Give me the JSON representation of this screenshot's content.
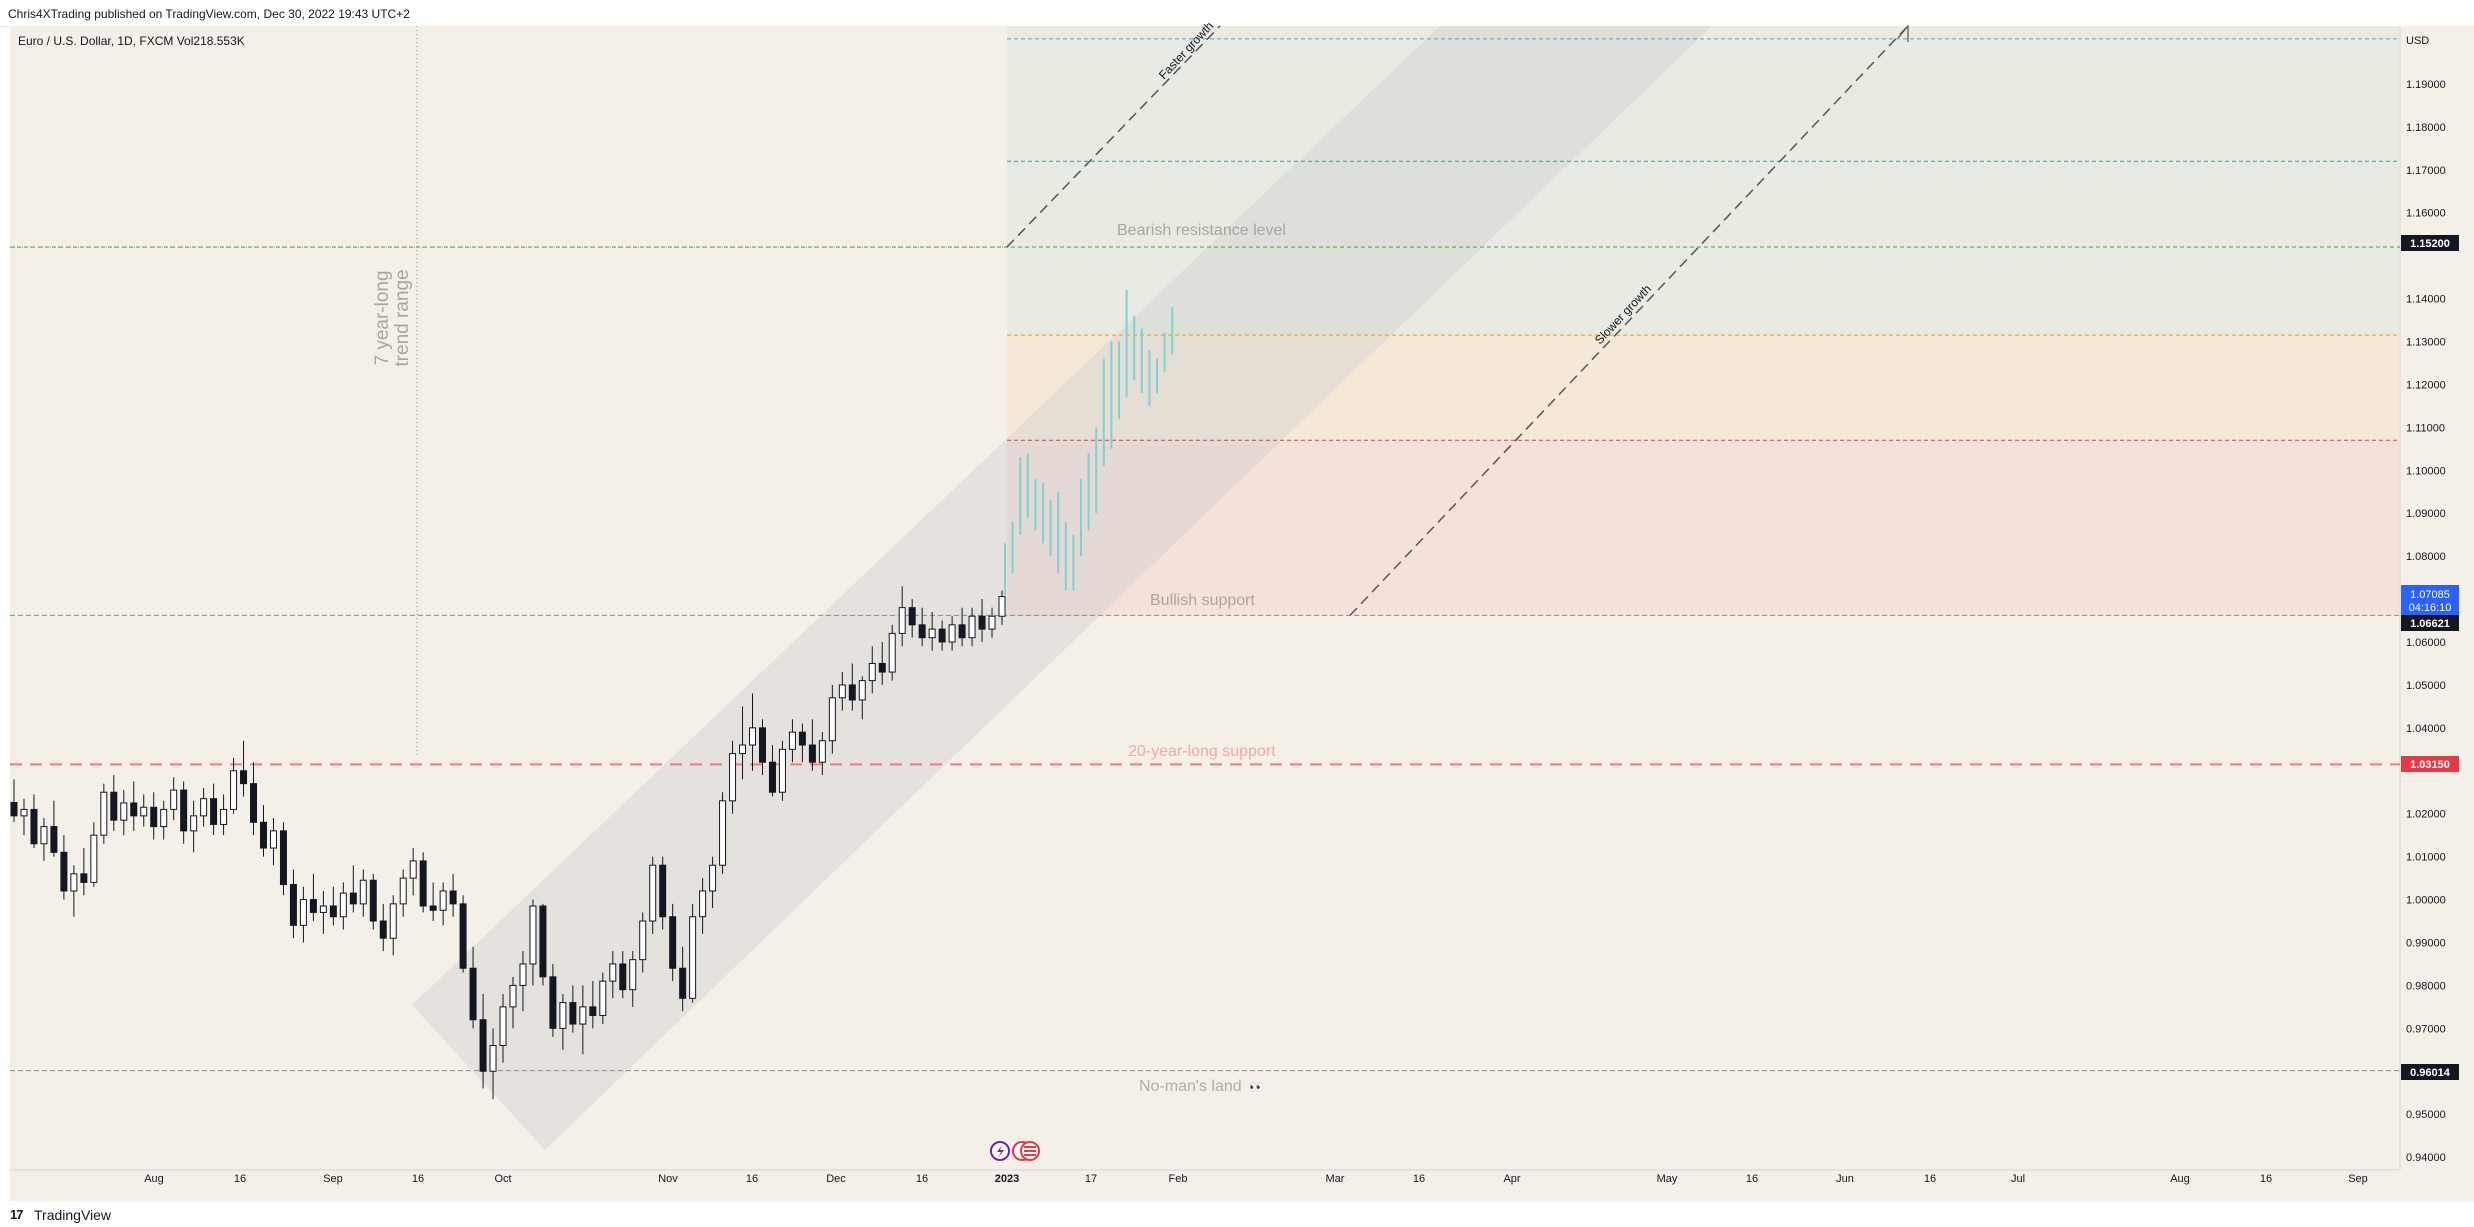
{
  "header": {
    "text": "Chris4XTrading published on TradingView.com, Dec 30, 2022 19:43 UTC+2"
  },
  "footer": {
    "logo": "17",
    "brand": "TradingView"
  },
  "chart_data": {
    "type": "candlestick",
    "symbol_title": "Euro / U.S. Dollar, 1D, FXCM  Vol218.553K",
    "currency": "USD",
    "ylim": [
      0.937,
      1.2035
    ],
    "y_ticks": [
      "1.19000",
      "1.18000",
      "1.17000",
      "1.16000",
      "1.14000",
      "1.13000",
      "1.12000",
      "1.11000",
      "1.10000",
      "1.09000",
      "1.08000",
      "1.06000",
      "1.05000",
      "1.04000",
      "1.02000",
      "1.01000",
      "1.00000",
      "0.99000",
      "0.98000",
      "0.97000",
      "0.95000",
      "0.94000"
    ],
    "x_ticks": [
      "Aug",
      "16",
      "Sep",
      "16",
      "Oct",
      "Nov",
      "16",
      "Dec",
      "16",
      "2023",
      "17",
      "Feb",
      "Mar",
      "16",
      "Apr",
      "May",
      "16",
      "Jun",
      "16",
      "Jul",
      "Aug",
      "16",
      "Sep"
    ],
    "price_badges": {
      "resistance": "1.15200",
      "current_price": "1.07085",
      "countdown": "04:16:10",
      "bullish_support": "1.06621",
      "long_support": "1.03150",
      "no_mans_land": "0.96014"
    },
    "annotations": {
      "bearish_resistance": "Bearish resistance level",
      "bullish_support": "Bullish support",
      "twenty_year_support": "20-year-long support",
      "no_mans_land": "No-man's land",
      "no_mans_land_emoji": "👀",
      "trend_range_line1": "7 year-long",
      "trend_range_line2": "trend range",
      "faster_growth": "Faster growth",
      "slower_growth": "Slower growth"
    },
    "horizontal_levels": [
      1.152,
      1.1315,
      1.107,
      1.06621,
      1.0315,
      0.96014,
      1.2005,
      1.172
    ],
    "historical_candles": [
      [
        1.0226,
        1.028,
        1.018,
        1.0195
      ],
      [
        1.0195,
        1.0235,
        1.015,
        1.021
      ],
      [
        1.021,
        1.0245,
        1.012,
        1.013
      ],
      [
        1.013,
        1.019,
        1.009,
        1.017
      ],
      [
        1.017,
        1.023,
        1.01,
        1.011
      ],
      [
        1.011,
        1.015,
        1.0,
        1.002
      ],
      [
        1.002,
        1.008,
        0.996,
        1.006
      ],
      [
        1.006,
        1.012,
        1.001,
        1.004
      ],
      [
        1.004,
        1.018,
        1.003,
        1.015
      ],
      [
        1.015,
        1.027,
        1.013,
        1.025
      ],
      [
        1.025,
        1.029,
        1.016,
        1.0185
      ],
      [
        1.0185,
        1.0255,
        1.015,
        1.0225
      ],
      [
        1.0225,
        1.0275,
        1.016,
        1.0195
      ],
      [
        1.0195,
        1.0245,
        1.017,
        1.0215
      ],
      [
        1.0215,
        1.025,
        1.014,
        1.017
      ],
      [
        1.017,
        1.023,
        1.014,
        1.021
      ],
      [
        1.021,
        1.0285,
        1.0185,
        1.0255
      ],
      [
        1.0255,
        1.0275,
        1.013,
        1.016
      ],
      [
        1.016,
        1.023,
        1.011,
        1.0195
      ],
      [
        1.0195,
        1.026,
        1.017,
        1.0235
      ],
      [
        1.0235,
        1.027,
        1.015,
        1.0175
      ],
      [
        1.0175,
        1.0245,
        1.015,
        1.021
      ],
      [
        1.021,
        1.033,
        1.02,
        1.03
      ],
      [
        1.03,
        1.037,
        1.024,
        1.027
      ],
      [
        1.027,
        1.032,
        1.015,
        1.018
      ],
      [
        1.018,
        1.022,
        1.01,
        1.012
      ],
      [
        1.012,
        1.019,
        1.008,
        1.016
      ],
      [
        1.016,
        1.018,
        1.001,
        1.0035
      ],
      [
        1.0035,
        1.007,
        0.991,
        0.994
      ],
      [
        0.994,
        1.003,
        0.99,
        1.0
      ],
      [
        1.0,
        1.006,
        0.995,
        0.997
      ],
      [
        0.997,
        1.002,
        0.992,
        0.9985
      ],
      [
        0.9985,
        1.003,
        0.994,
        0.996
      ],
      [
        0.996,
        1.004,
        0.993,
        1.0015
      ],
      [
        1.0015,
        1.008,
        0.997,
        0.999
      ],
      [
        0.999,
        1.007,
        0.996,
        1.0045
      ],
      [
        1.0045,
        1.006,
        0.993,
        0.995
      ],
      [
        0.995,
        0.999,
        0.988,
        0.991
      ],
      [
        0.991,
        1.001,
        0.987,
        0.999
      ],
      [
        0.999,
        1.007,
        0.996,
        1.005
      ],
      [
        1.005,
        1.012,
        1.001,
        1.009
      ],
      [
        1.009,
        1.011,
        0.997,
        0.9985
      ],
      [
        0.9985,
        1.004,
        0.995,
        0.9975
      ],
      [
        0.9975,
        1.004,
        0.994,
        1.002
      ],
      [
        1.002,
        1.006,
        0.996,
        0.999
      ],
      [
        0.999,
        1.001,
        0.983,
        0.984
      ],
      [
        0.984,
        0.989,
        0.97,
        0.972
      ],
      [
        0.972,
        0.978,
        0.956,
        0.96
      ],
      [
        0.96,
        0.97,
        0.9535,
        0.966
      ],
      [
        0.966,
        0.978,
        0.962,
        0.975
      ],
      [
        0.975,
        0.982,
        0.97,
        0.98
      ],
      [
        0.98,
        0.988,
        0.974,
        0.985
      ],
      [
        0.985,
        1.0,
        0.98,
        0.9985
      ],
      [
        0.9985,
        0.999,
        0.98,
        0.982
      ],
      [
        0.982,
        0.985,
        0.968,
        0.97
      ],
      [
        0.97,
        0.978,
        0.965,
        0.976
      ],
      [
        0.976,
        0.98,
        0.969,
        0.971
      ],
      [
        0.971,
        0.98,
        0.964,
        0.975
      ],
      [
        0.975,
        0.981,
        0.97,
        0.973
      ],
      [
        0.973,
        0.983,
        0.971,
        0.981
      ],
      [
        0.981,
        0.988,
        0.977,
        0.985
      ],
      [
        0.985,
        0.988,
        0.977,
        0.979
      ],
      [
        0.979,
        0.988,
        0.975,
        0.986
      ],
      [
        0.986,
        0.997,
        0.983,
        0.995
      ],
      [
        0.995,
        1.01,
        0.992,
        1.008
      ],
      [
        1.008,
        1.01,
        0.993,
        0.996
      ],
      [
        0.996,
        0.999,
        0.981,
        0.984
      ],
      [
        0.984,
        0.989,
        0.974,
        0.977
      ],
      [
        0.977,
        0.999,
        0.976,
        0.996
      ],
      [
        0.996,
        1.005,
        0.992,
        1.002
      ],
      [
        1.002,
        1.01,
        0.998,
        1.008
      ],
      [
        1.008,
        1.025,
        1.006,
        1.023
      ],
      [
        1.023,
        1.037,
        1.02,
        1.034
      ],
      [
        1.034,
        1.045,
        1.028,
        1.036
      ],
      [
        1.036,
        1.048,
        1.03,
        1.04
      ],
      [
        1.04,
        1.042,
        1.029,
        1.032
      ],
      [
        1.032,
        1.036,
        1.024,
        1.025
      ],
      [
        1.025,
        1.037,
        1.023,
        1.035
      ],
      [
        1.035,
        1.042,
        1.032,
        1.039
      ],
      [
        1.039,
        1.041,
        1.032,
        1.036
      ],
      [
        1.036,
        1.042,
        1.03,
        1.032
      ],
      [
        1.032,
        1.039,
        1.029,
        1.037
      ],
      [
        1.037,
        1.05,
        1.034,
        1.047
      ],
      [
        1.047,
        1.053,
        1.044,
        1.05
      ],
      [
        1.05,
        1.055,
        1.044,
        1.0465
      ],
      [
        1.0465,
        1.052,
        1.042,
        1.051
      ],
      [
        1.051,
        1.059,
        1.048,
        1.055
      ],
      [
        1.055,
        1.06,
        1.05,
        1.053
      ],
      [
        1.053,
        1.064,
        1.051,
        1.062
      ],
      [
        1.062,
        1.073,
        1.059,
        1.068
      ],
      [
        1.068,
        1.07,
        1.061,
        1.064
      ],
      [
        1.064,
        1.068,
        1.059,
        1.061
      ],
      [
        1.061,
        1.067,
        1.058,
        1.063
      ],
      [
        1.063,
        1.065,
        1.058,
        1.06
      ],
      [
        1.06,
        1.066,
        1.058,
        1.064
      ],
      [
        1.064,
        1.068,
        1.059,
        1.061
      ],
      [
        1.061,
        1.068,
        1.059,
        1.066
      ],
      [
        1.066,
        1.07,
        1.06,
        1.063
      ],
      [
        1.063,
        1.068,
        1.061,
        1.066
      ],
      [
        1.066,
        1.072,
        1.064,
        1.0706
      ]
    ],
    "projected_bars": [
      [
        1.071,
        1.083
      ],
      [
        1.076,
        1.088
      ],
      [
        1.085,
        1.103
      ],
      [
        1.089,
        1.104
      ],
      [
        1.086,
        1.098
      ],
      [
        1.083,
        1.097
      ],
      [
        1.08,
        1.093
      ],
      [
        1.076,
        1.095
      ],
      [
        1.072,
        1.088
      ],
      [
        1.072,
        1.085
      ],
      [
        1.08,
        1.098
      ],
      [
        1.086,
        1.104
      ],
      [
        1.09,
        1.11
      ],
      [
        1.101,
        1.126
      ],
      [
        1.105,
        1.13
      ],
      [
        1.112,
        1.13
      ],
      [
        1.117,
        1.142
      ],
      [
        1.121,
        1.136
      ],
      [
        1.118,
        1.133
      ],
      [
        1.115,
        1.128
      ],
      [
        1.118,
        1.126
      ],
      [
        1.123,
        1.132
      ],
      [
        1.127,
        1.138
      ]
    ]
  }
}
